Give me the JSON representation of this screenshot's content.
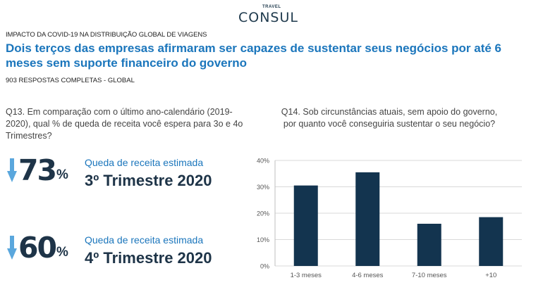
{
  "logo": {
    "small": "TRAVEL",
    "main": "CONSUL"
  },
  "header": {
    "kicker": "IMPACTO DA COVID-19 NA DISTRIBUIÇÃO GLOBAL DE VIAGENS",
    "headline": "Dois terços das empresas afirmaram ser capazes de sustentar seus negócios por até 6 meses sem suporte financeiro do governo",
    "subkicker": "903 RESPOSTAS COMPLETAS - GLOBAL"
  },
  "q13": {
    "question": "Q13. Em comparação com o último ano-calendário (2019-2020), qual % de queda de receita você espera para 3o e 4o Trimestres?",
    "stats": [
      {
        "value": "73",
        "pct": "%",
        "label": "Queda de receita estimada",
        "period": "3º Trimestre 2020"
      },
      {
        "value": "60",
        "pct": "%",
        "label": "Queda de receita estimada",
        "period": "4º Trimestre 2020"
      }
    ]
  },
  "q14": {
    "question": "Q14. Sob circunstâncias atuais, sem apoio do governo, por quanto você conseguiria sustentar o seu negócio?"
  },
  "colors": {
    "accent": "#1b76bc",
    "dark": "#1e3448",
    "bar": "#13344f",
    "arrow": "#5aa7dd"
  },
  "icons": {
    "down_arrow": "down-arrow-icon"
  },
  "chart_data": {
    "type": "bar",
    "categories": [
      "1-3 meses",
      "4-6 meses",
      "7-10 meses",
      "+10"
    ],
    "values": [
      30.5,
      35.5,
      16,
      18.5
    ],
    "ylim": [
      0,
      40
    ],
    "yticks": [
      "0%",
      "10%",
      "20%",
      "30%",
      "40%"
    ],
    "grid": true,
    "legend": "none"
  }
}
